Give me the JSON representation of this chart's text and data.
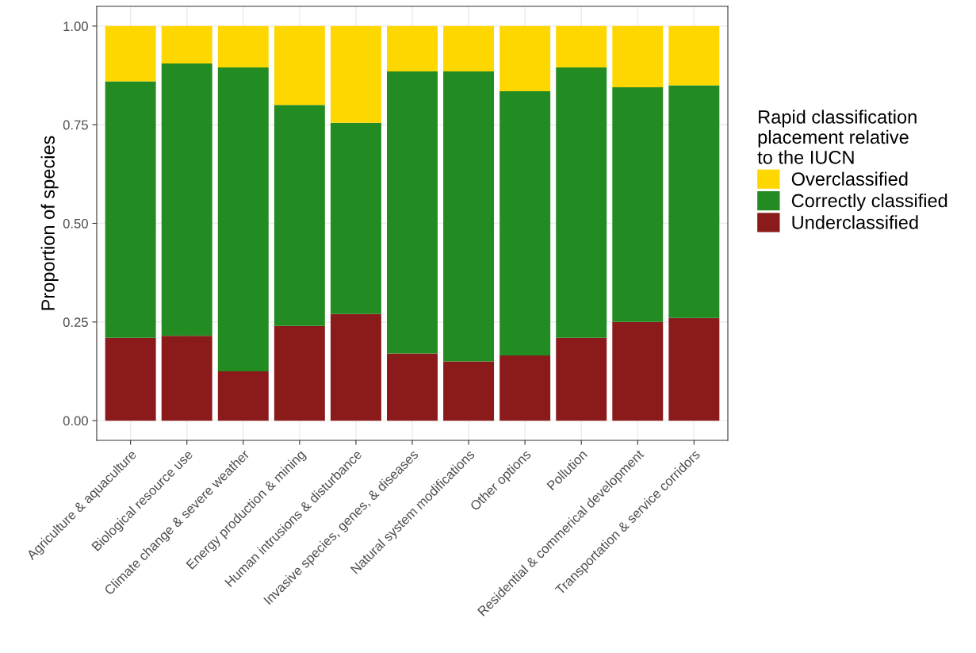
{
  "chart_data": {
    "type": "bar",
    "stacked": true,
    "ylabel": "Proportion of species",
    "legend_title": "Rapid classification\nplacement relative\nto the IUCN",
    "categories": [
      "Agriculture & aquaculture",
      "Biological resource use",
      "Climate change & severe weather",
      "Energy production & mining",
      "Human intrusions & disturbance",
      "Invasive species, genes, & diseases",
      "Natural system modifications",
      "Other options",
      "Pollution",
      "Residential & commerical development",
      "Transportation & service corridors"
    ],
    "series": [
      {
        "name": "Underclassified",
        "color": "#8b1a1a",
        "values": [
          0.21,
          0.215,
          0.125,
          0.24,
          0.27,
          0.17,
          0.15,
          0.165,
          0.21,
          0.25,
          0.26
        ]
      },
      {
        "name": "Correctly classified",
        "color": "#228b22",
        "values": [
          0.65,
          0.69,
          0.77,
          0.56,
          0.485,
          0.715,
          0.735,
          0.67,
          0.685,
          0.595,
          0.59
        ]
      },
      {
        "name": "Overclassified",
        "color": "#ffd700",
        "values": [
          0.14,
          0.095,
          0.105,
          0.2,
          0.245,
          0.115,
          0.115,
          0.165,
          0.105,
          0.155,
          0.15
        ]
      }
    ],
    "ylim": [
      -0.05,
      1.05
    ],
    "yticks": [
      {
        "value": 0,
        "label": "0.00"
      },
      {
        "value": 0.25,
        "label": "0.25"
      },
      {
        "value": 0.5,
        "label": "0.50"
      },
      {
        "value": 0.75,
        "label": "0.75"
      },
      {
        "value": 1,
        "label": "1.00"
      }
    ],
    "grid": true,
    "legend": "right"
  }
}
